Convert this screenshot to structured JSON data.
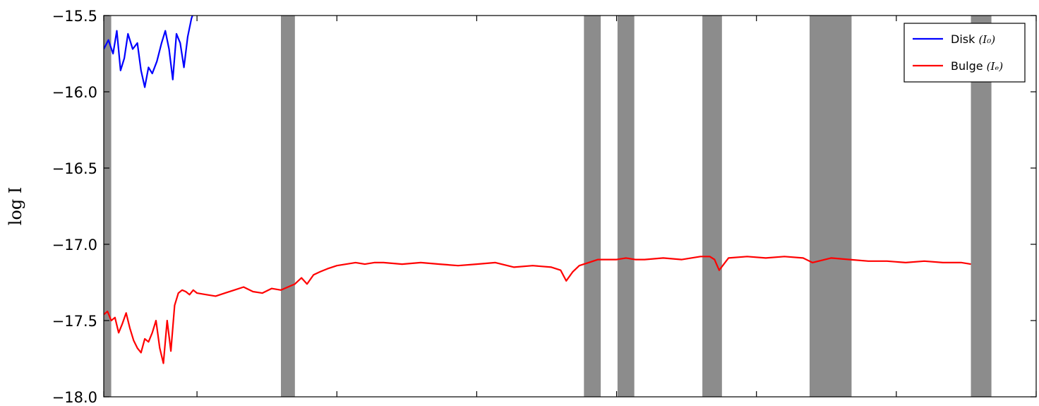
{
  "chart_data": {
    "type": "line",
    "title": "",
    "xlabel": "",
    "ylabel": "log I",
    "ylim": [
      -18.0,
      -15.5
    ],
    "yticks": [
      -18.0,
      -17.5,
      -17.0,
      -16.5,
      -16.0,
      -15.5
    ],
    "ytick_labels": [
      "−18.0",
      "−17.5",
      "−17.0",
      "−16.5",
      "−16.0",
      "−15.5"
    ],
    "xlim": [
      0,
      1000
    ],
    "xticks": [
      0,
      100,
      250,
      400,
      550,
      700,
      850,
      1000
    ],
    "xtick_labels_visible": false,
    "grid": false,
    "legend": {
      "placement": "top-right",
      "entries": [
        {
          "name": "Disk",
          "math": "(I₀)",
          "color": "#0000ff"
        },
        {
          "name": "Bulge",
          "math": "(Iₑ)",
          "color": "#ff0000"
        }
      ]
    },
    "masked_regions": {
      "color": "#8c8c8c",
      "x_ranges": [
        [
          0,
          8
        ],
        [
          190,
          205
        ],
        [
          515,
          533
        ],
        [
          551,
          569
        ],
        [
          642,
          663
        ],
        [
          757,
          802
        ],
        [
          930,
          952
        ]
      ]
    },
    "series": [
      {
        "name": "Disk (I₀)",
        "color": "#0000ff",
        "x": [
          0,
          5,
          10,
          14,
          18,
          22,
          26,
          31,
          36,
          40,
          44,
          48,
          52,
          57,
          62,
          66,
          70,
          74,
          78,
          82,
          86,
          90,
          94,
          98,
          102
        ],
        "y": [
          -15.72,
          -15.66,
          -15.75,
          -15.6,
          -15.86,
          -15.78,
          -15.62,
          -15.72,
          -15.68,
          -15.86,
          -15.97,
          -15.84,
          -15.88,
          -15.8,
          -15.68,
          -15.6,
          -15.72,
          -15.92,
          -15.62,
          -15.68,
          -15.84,
          -15.64,
          -15.52,
          -15.45,
          -15.4
        ]
      },
      {
        "name": "Bulge (Iₑ)",
        "color": "#ff0000",
        "x": [
          0,
          4,
          8,
          12,
          16,
          20,
          24,
          28,
          32,
          36,
          40,
          44,
          48,
          52,
          56,
          60,
          64,
          68,
          72,
          76,
          80,
          84,
          88,
          92,
          96,
          100,
          110,
          120,
          130,
          140,
          150,
          160,
          170,
          180,
          190,
          205,
          212,
          218,
          225,
          232,
          240,
          250,
          260,
          270,
          280,
          290,
          300,
          320,
          340,
          360,
          380,
          400,
          420,
          440,
          460,
          480,
          490,
          496,
          503,
          510,
          520,
          530,
          540,
          550,
          560,
          570,
          580,
          600,
          620,
          640,
          650,
          655,
          660,
          670,
          690,
          710,
          730,
          750,
          760,
          780,
          800,
          820,
          840,
          860,
          880,
          900,
          920,
          930
        ],
        "y": [
          -17.46,
          -17.44,
          -17.5,
          -17.48,
          -17.58,
          -17.52,
          -17.45,
          -17.55,
          -17.63,
          -17.68,
          -17.71,
          -17.62,
          -17.64,
          -17.58,
          -17.5,
          -17.68,
          -17.78,
          -17.5,
          -17.7,
          -17.4,
          -17.32,
          -17.3,
          -17.31,
          -17.33,
          -17.3,
          -17.32,
          -17.33,
          -17.34,
          -17.32,
          -17.3,
          -17.28,
          -17.31,
          -17.32,
          -17.29,
          -17.3,
          -17.26,
          -17.22,
          -17.26,
          -17.2,
          -17.18,
          -17.16,
          -17.14,
          -17.13,
          -17.12,
          -17.13,
          -17.12,
          -17.12,
          -17.13,
          -17.12,
          -17.13,
          -17.14,
          -17.13,
          -17.12,
          -17.15,
          -17.14,
          -17.15,
          -17.17,
          -17.24,
          -17.18,
          -17.14,
          -17.12,
          -17.1,
          -17.1,
          -17.1,
          -17.09,
          -17.1,
          -17.1,
          -17.09,
          -17.1,
          -17.08,
          -17.08,
          -17.1,
          -17.17,
          -17.09,
          -17.08,
          -17.09,
          -17.08,
          -17.09,
          -17.12,
          -17.09,
          -17.1,
          -17.11,
          -17.11,
          -17.12,
          -17.11,
          -17.12,
          -17.12,
          -17.13
        ]
      }
    ]
  }
}
